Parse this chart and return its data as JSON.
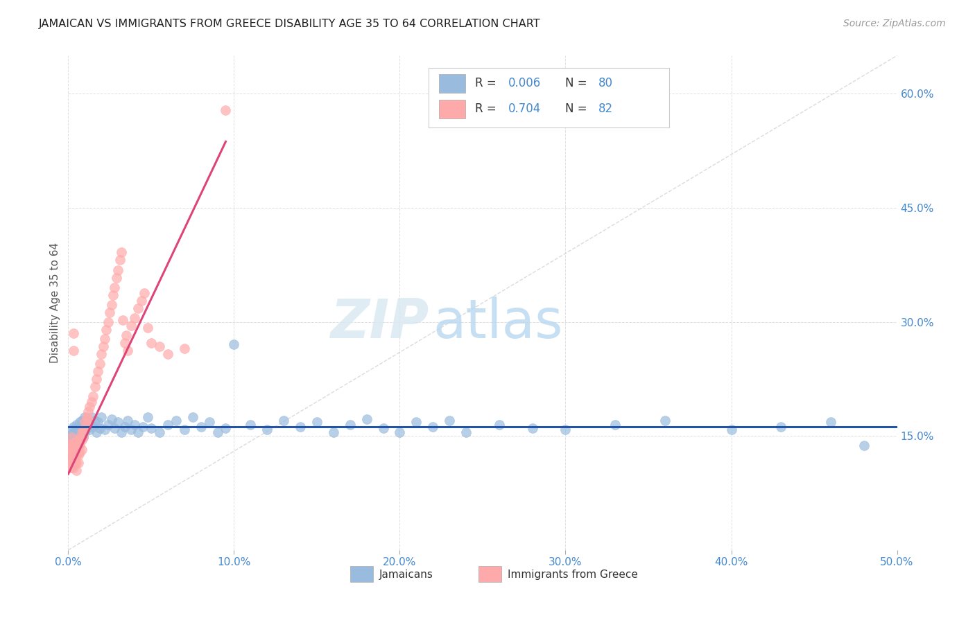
{
  "title": "JAMAICAN VS IMMIGRANTS FROM GREECE DISABILITY AGE 35 TO 64 CORRELATION CHART",
  "source": "Source: ZipAtlas.com",
  "ylabel": "Disability Age 35 to 64",
  "xlim": [
    0.0,
    0.5
  ],
  "ylim": [
    0.0,
    0.65
  ],
  "xticks": [
    0.0,
    0.1,
    0.2,
    0.3,
    0.4,
    0.5
  ],
  "xticklabels": [
    "0.0%",
    "10.0%",
    "20.0%",
    "30.0%",
    "40.0%",
    "50.0%"
  ],
  "yticks": [
    0.0,
    0.15,
    0.3,
    0.45,
    0.6
  ],
  "yticklabels": [
    "",
    "15.0%",
    "30.0%",
    "45.0%",
    "60.0%"
  ],
  "background_color": "#ffffff",
  "grid_color": "#e0e0e0",
  "blue_color": "#99bbdd",
  "pink_color": "#ffaaaa",
  "blue_line_color": "#2255AA",
  "pink_line_color": "#dd4477",
  "diag_line_color": "#cccccc",
  "label_color": "#4488cc",
  "watermark_zip": "ZIP",
  "watermark_atlas": "atlas",
  "legend_label1": "Jamaicans",
  "legend_label2": "Immigrants from Greece",
  "r1": "0.006",
  "n1": "80",
  "r2": "0.704",
  "n2": "82",
  "jamaicans_x": [
    0.001,
    0.001,
    0.002,
    0.002,
    0.003,
    0.003,
    0.003,
    0.004,
    0.004,
    0.005,
    0.005,
    0.005,
    0.006,
    0.006,
    0.007,
    0.007,
    0.008,
    0.008,
    0.009,
    0.009,
    0.01,
    0.01,
    0.011,
    0.011,
    0.012,
    0.013,
    0.014,
    0.015,
    0.016,
    0.017,
    0.018,
    0.019,
    0.02,
    0.022,
    0.024,
    0.026,
    0.028,
    0.03,
    0.032,
    0.034,
    0.036,
    0.038,
    0.04,
    0.042,
    0.045,
    0.048,
    0.05,
    0.055,
    0.06,
    0.065,
    0.07,
    0.075,
    0.08,
    0.085,
    0.09,
    0.095,
    0.1,
    0.11,
    0.12,
    0.13,
    0.14,
    0.15,
    0.16,
    0.17,
    0.18,
    0.19,
    0.2,
    0.21,
    0.22,
    0.23,
    0.24,
    0.26,
    0.28,
    0.3,
    0.33,
    0.36,
    0.4,
    0.43,
    0.46,
    0.48
  ],
  "jamaicans_y": [
    0.148,
    0.152,
    0.145,
    0.158,
    0.142,
    0.15,
    0.162,
    0.14,
    0.155,
    0.148,
    0.16,
    0.165,
    0.138,
    0.155,
    0.168,
    0.145,
    0.158,
    0.17,
    0.148,
    0.162,
    0.175,
    0.155,
    0.16,
    0.17,
    0.165,
    0.158,
    0.175,
    0.162,
    0.17,
    0.155,
    0.168,
    0.16,
    0.175,
    0.158,
    0.165,
    0.172,
    0.16,
    0.168,
    0.155,
    0.162,
    0.17,
    0.158,
    0.165,
    0.155,
    0.162,
    0.175,
    0.16,
    0.155,
    0.165,
    0.17,
    0.158,
    0.175,
    0.162,
    0.168,
    0.155,
    0.16,
    0.27,
    0.165,
    0.158,
    0.17,
    0.162,
    0.168,
    0.155,
    0.165,
    0.172,
    0.16,
    0.155,
    0.168,
    0.162,
    0.17,
    0.155,
    0.165,
    0.16,
    0.158,
    0.165,
    0.17,
    0.158,
    0.162,
    0.168,
    0.137
  ],
  "greece_x": [
    0.001,
    0.001,
    0.001,
    0.001,
    0.001,
    0.002,
    0.002,
    0.002,
    0.002,
    0.002,
    0.002,
    0.002,
    0.003,
    0.003,
    0.003,
    0.003,
    0.003,
    0.003,
    0.004,
    0.004,
    0.004,
    0.004,
    0.004,
    0.005,
    0.005,
    0.005,
    0.005,
    0.006,
    0.006,
    0.006,
    0.006,
    0.007,
    0.007,
    0.007,
    0.008,
    0.008,
    0.008,
    0.009,
    0.009,
    0.01,
    0.01,
    0.011,
    0.011,
    0.012,
    0.012,
    0.013,
    0.014,
    0.015,
    0.016,
    0.017,
    0.018,
    0.019,
    0.02,
    0.021,
    0.022,
    0.023,
    0.024,
    0.025,
    0.026,
    0.027,
    0.028,
    0.029,
    0.03,
    0.031,
    0.032,
    0.033,
    0.034,
    0.035,
    0.036,
    0.038,
    0.04,
    0.042,
    0.044,
    0.046,
    0.048,
    0.05,
    0.055,
    0.06,
    0.07,
    0.003,
    0.003,
    0.095
  ],
  "greece_y": [
    0.125,
    0.118,
    0.13,
    0.138,
    0.108,
    0.132,
    0.125,
    0.118,
    0.108,
    0.14,
    0.148,
    0.12,
    0.128,
    0.118,
    0.135,
    0.112,
    0.125,
    0.108,
    0.142,
    0.132,
    0.12,
    0.115,
    0.128,
    0.138,
    0.125,
    0.115,
    0.105,
    0.145,
    0.135,
    0.125,
    0.115,
    0.148,
    0.138,
    0.128,
    0.155,
    0.145,
    0.132,
    0.158,
    0.148,
    0.168,
    0.158,
    0.175,
    0.165,
    0.182,
    0.172,
    0.188,
    0.195,
    0.202,
    0.215,
    0.225,
    0.235,
    0.245,
    0.258,
    0.268,
    0.278,
    0.29,
    0.3,
    0.312,
    0.322,
    0.335,
    0.345,
    0.358,
    0.368,
    0.382,
    0.392,
    0.302,
    0.272,
    0.282,
    0.262,
    0.295,
    0.305,
    0.318,
    0.328,
    0.338,
    0.292,
    0.272,
    0.268,
    0.258,
    0.265,
    0.285,
    0.262,
    0.578
  ]
}
